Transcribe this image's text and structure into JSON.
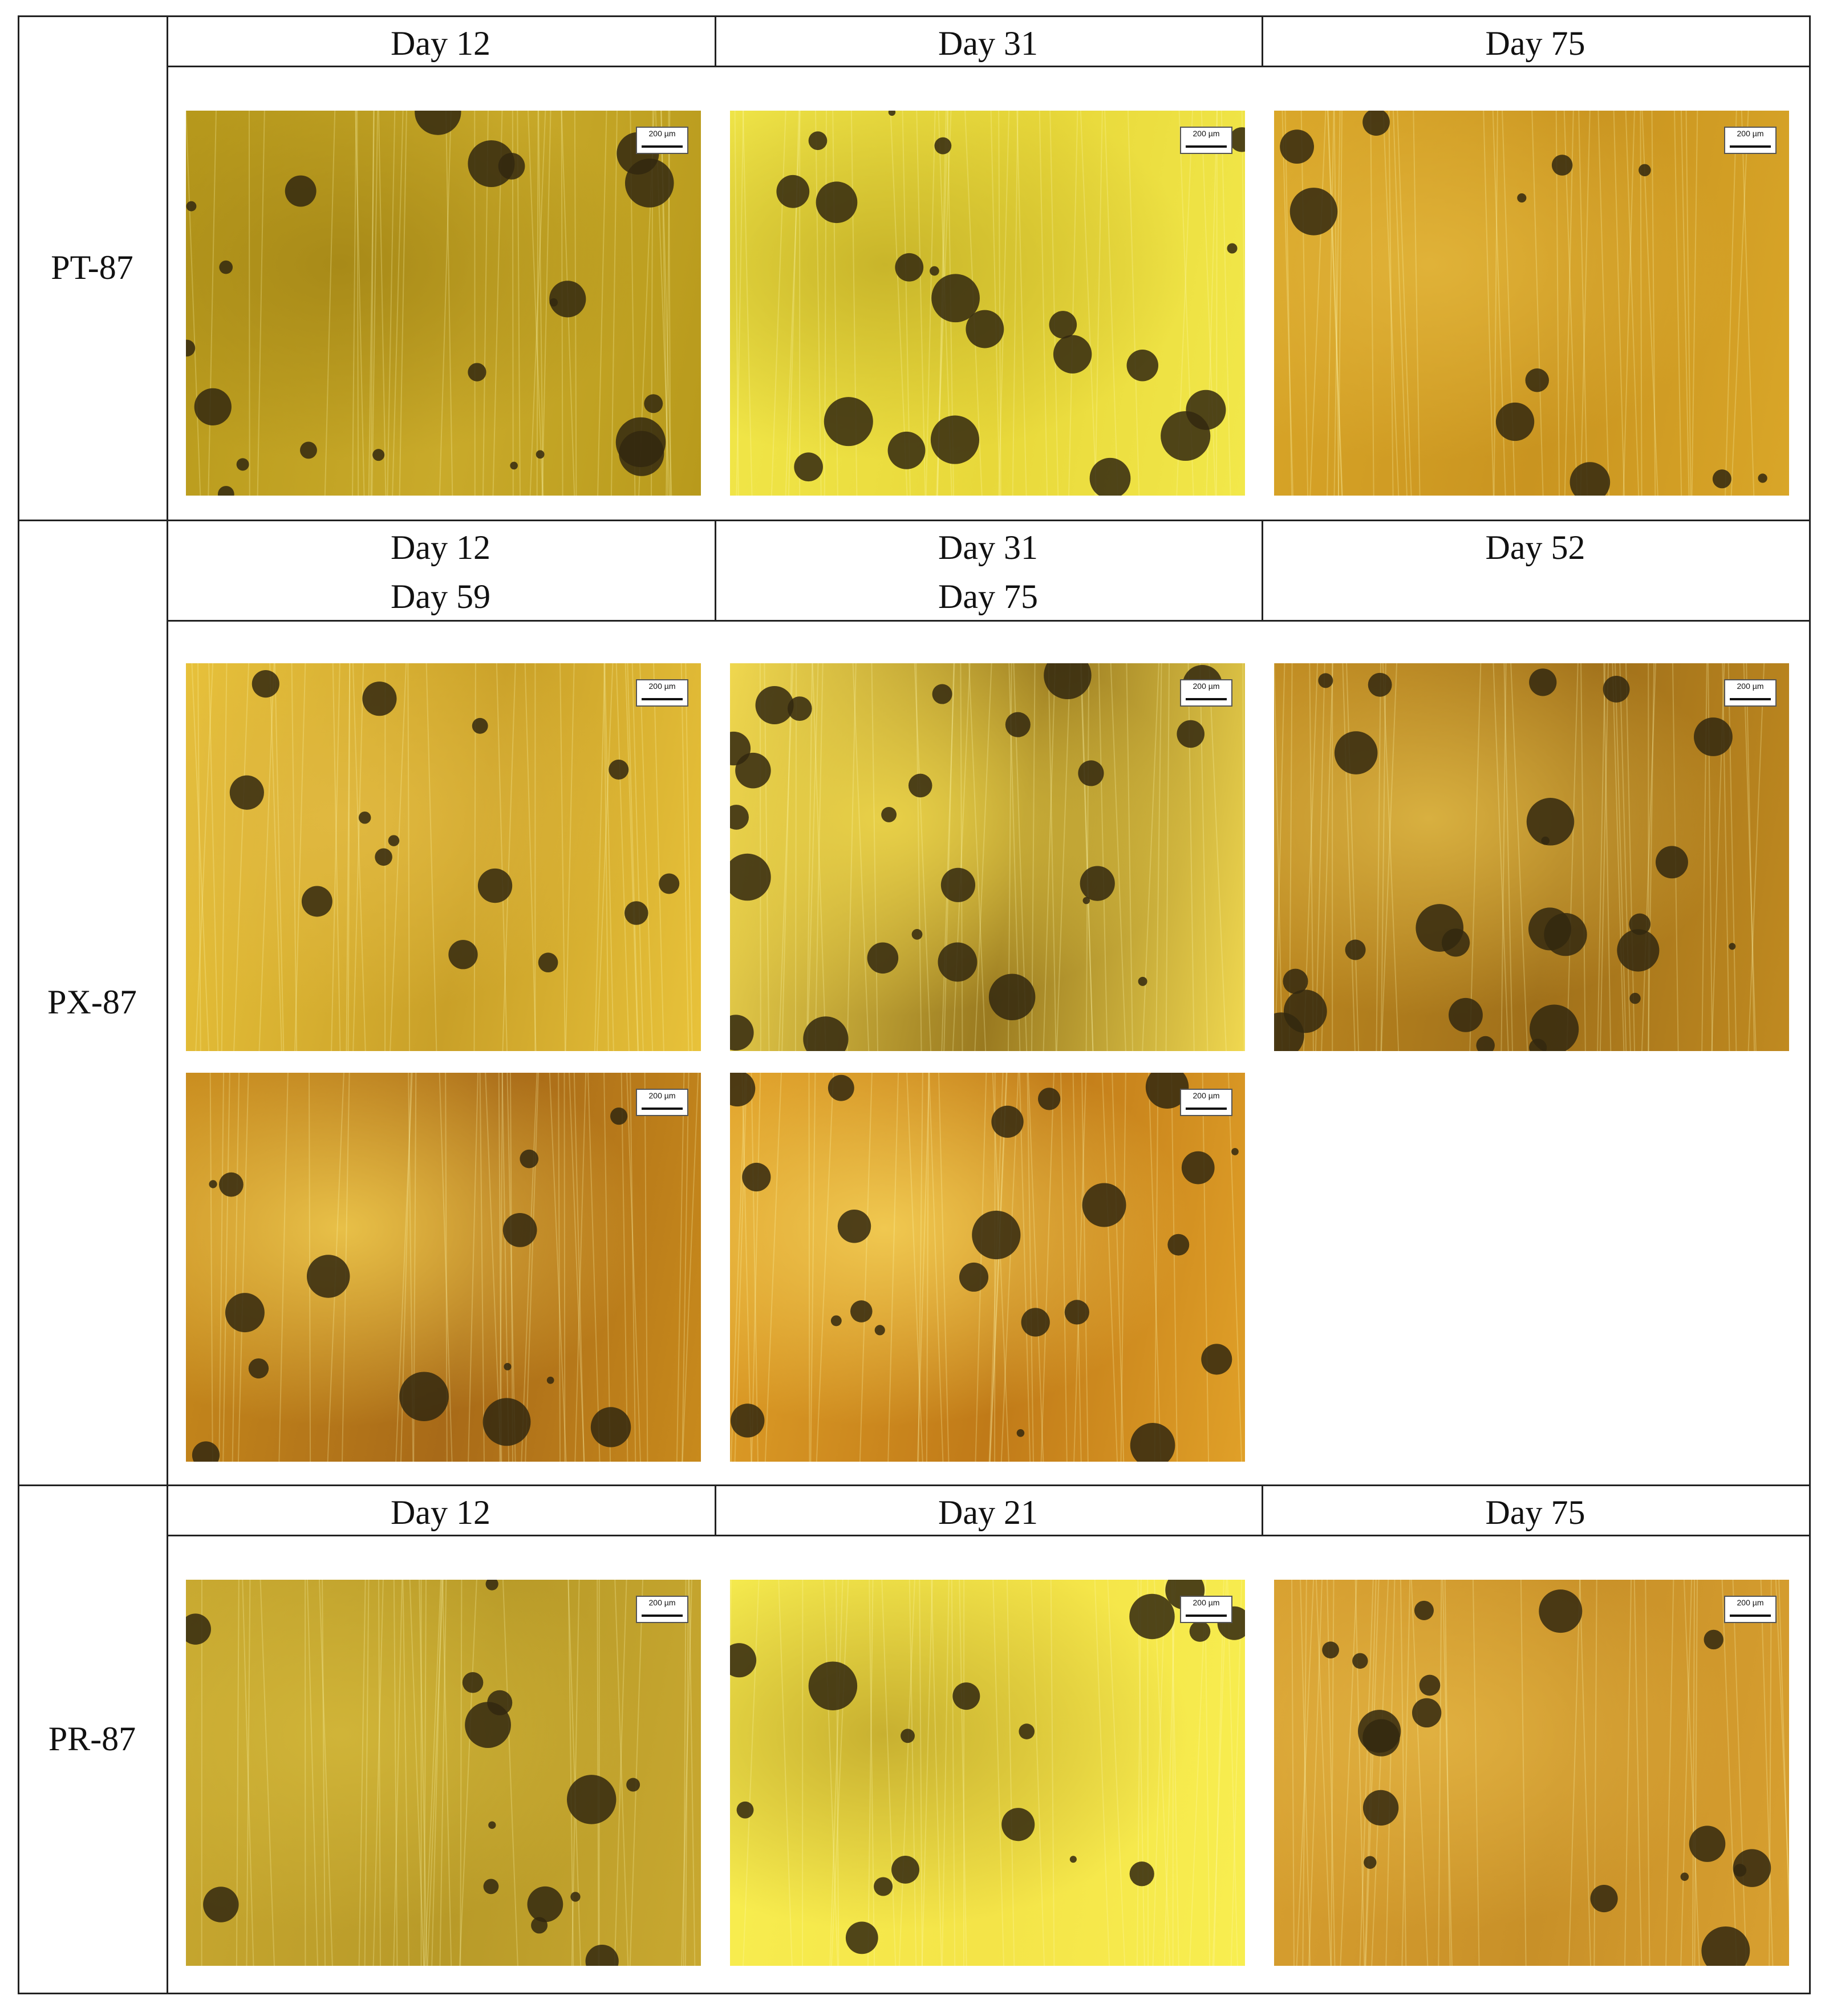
{
  "table": {
    "rows": [
      {
        "label": "PT-87",
        "columns": [
          {
            "header": [
              "Day 12"
            ]
          },
          {
            "header": [
              "Day 31"
            ]
          },
          {
            "header": [
              "Day 75"
            ]
          }
        ]
      },
      {
        "label": "PX-87",
        "columns": [
          {
            "header": [
              "Day 12",
              "Day 59"
            ]
          },
          {
            "header": [
              "Day 31",
              "Day 75"
            ]
          },
          {
            "header": [
              "Day 52"
            ]
          }
        ]
      },
      {
        "label": "PR-87",
        "columns": [
          {
            "header": [
              "Day 12"
            ]
          },
          {
            "header": [
              "Day 21"
            ]
          },
          {
            "header": [
              "Day 75"
            ]
          }
        ]
      }
    ]
  },
  "scale_bar": "200 µm"
}
